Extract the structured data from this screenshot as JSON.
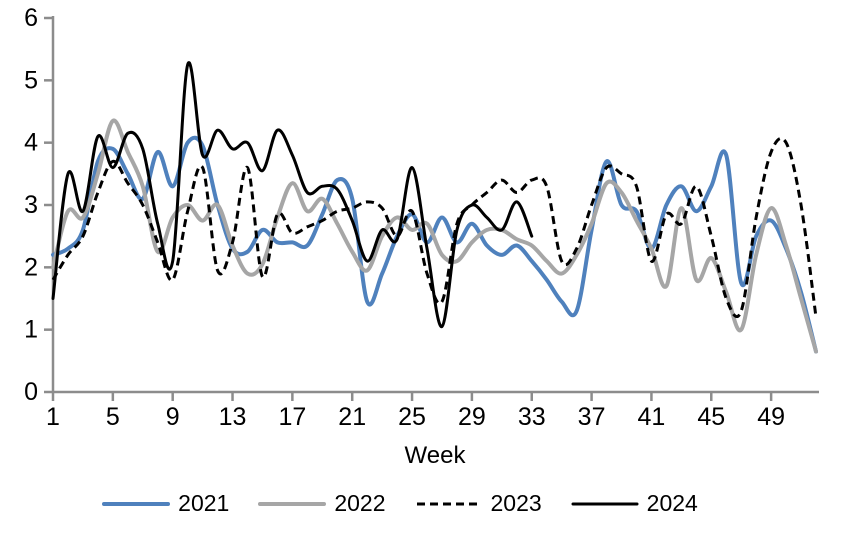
{
  "chart_data": {
    "type": "line",
    "x_label": "Week",
    "x_ticks": [
      1,
      5,
      9,
      13,
      17,
      21,
      25,
      29,
      33,
      37,
      41,
      45,
      49
    ],
    "y_ticks": [
      0,
      1,
      2,
      3,
      4,
      5,
      6
    ],
    "x_range": [
      1,
      52
    ],
    "ylim": [
      0,
      6
    ],
    "grid": false,
    "legend_position": "bottom",
    "smooth_lines": true,
    "series": [
      {
        "name": "2021",
        "color": "#4F81BD",
        "style": "solid",
        "width": 4,
        "start_week": 1,
        "values": [
          2.2,
          2.3,
          2.6,
          3.7,
          3.9,
          3.5,
          3.1,
          3.85,
          3.3,
          4.0,
          3.95,
          3.0,
          2.3,
          2.25,
          2.6,
          2.4,
          2.4,
          2.35,
          2.85,
          3.4,
          3.1,
          1.45,
          1.9,
          2.5,
          2.85,
          2.4,
          2.8,
          2.4,
          2.7,
          2.35,
          2.2,
          2.35,
          2.1,
          1.8,
          1.45,
          1.3,
          2.6,
          3.7,
          3.0,
          2.9,
          2.3,
          3.0,
          3.3,
          2.9,
          3.3,
          3.8,
          1.75,
          2.5,
          2.75,
          2.3,
          1.6,
          0.65
        ]
      },
      {
        "name": "2022",
        "color": "#A6A6A6",
        "style": "solid",
        "width": 4,
        "start_week": 1,
        "values": [
          2.0,
          2.9,
          2.8,
          3.5,
          4.35,
          3.85,
          3.3,
          2.25,
          2.8,
          3.0,
          2.75,
          3.0,
          2.35,
          1.9,
          2.05,
          2.8,
          3.35,
          2.9,
          3.1,
          2.7,
          2.25,
          1.95,
          2.5,
          2.8,
          2.6,
          2.7,
          2.2,
          2.1,
          2.4,
          2.6,
          2.6,
          2.45,
          2.35,
          2.1,
          1.9,
          2.2,
          2.7,
          3.35,
          3.2,
          2.75,
          2.3,
          1.7,
          2.95,
          1.8,
          2.15,
          1.6,
          1.0,
          2.2,
          2.95,
          2.35,
          1.5,
          0.65
        ]
      },
      {
        "name": "2023",
        "color": "#000000",
        "style": "dashed",
        "width": 3,
        "start_week": 1,
        "values": [
          1.8,
          2.2,
          2.5,
          3.2,
          3.7,
          3.35,
          3.0,
          2.4,
          1.8,
          2.9,
          3.6,
          1.95,
          2.4,
          3.6,
          1.85,
          2.85,
          2.55,
          2.65,
          2.75,
          2.9,
          2.95,
          3.05,
          2.95,
          2.5,
          2.9,
          1.9,
          1.45,
          2.7,
          3.0,
          3.2,
          3.4,
          3.2,
          3.4,
          3.3,
          2.1,
          2.3,
          3.0,
          3.6,
          3.5,
          3.3,
          2.1,
          2.85,
          2.7,
          3.3,
          2.5,
          1.5,
          1.3,
          2.8,
          3.85,
          4.0,
          3.0,
          1.2
        ]
      },
      {
        "name": "2024",
        "color": "#000000",
        "style": "solid",
        "width": 3,
        "start_week": 1,
        "values": [
          1.5,
          3.5,
          2.9,
          4.1,
          3.6,
          4.15,
          3.9,
          2.7,
          2.1,
          5.25,
          3.8,
          4.2,
          3.9,
          4.0,
          3.55,
          4.2,
          3.8,
          3.2,
          3.3,
          3.25,
          2.75,
          2.1,
          2.6,
          2.45,
          3.6,
          2.3,
          1.05,
          2.6,
          3.0,
          2.8,
          2.6,
          3.05,
          2.5
        ]
      }
    ],
    "styles": {
      "axis_color": "#8C8C8C",
      "text_color": "#000000",
      "background": "#FFFFFF"
    }
  }
}
